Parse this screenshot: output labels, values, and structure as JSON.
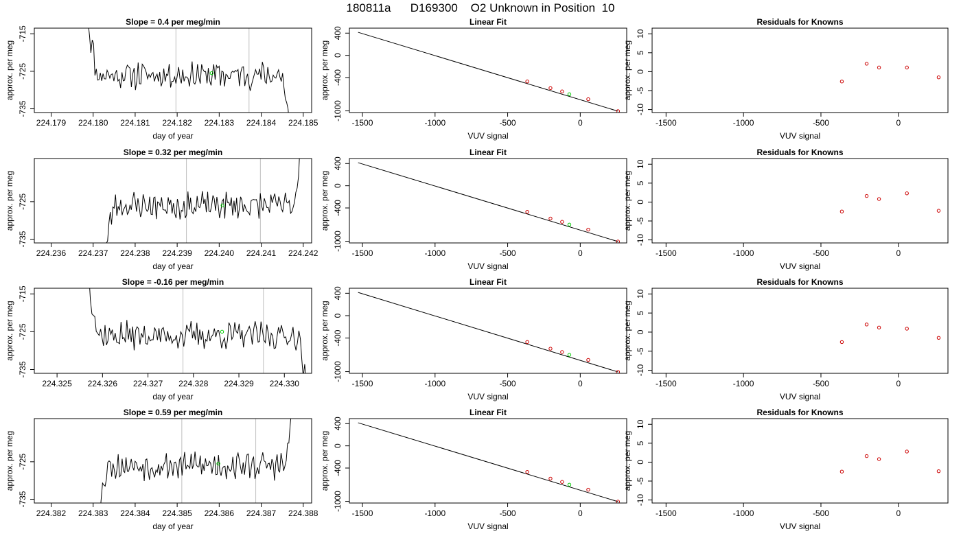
{
  "title": "180811a      D169300    O2 Unknown in Position  10",
  "colors": {
    "line": "#000000",
    "known_point": "#cc0000",
    "unknown_point": "#00cc00",
    "vline": "#bebebe",
    "frame": "#000000"
  },
  "chart_data": [
    {
      "type": "line",
      "panel": "timeseries",
      "row": 0,
      "title": "Slope =  0.4  per meg/min",
      "xlabel": "day of year",
      "ylabel": "approx. per meg",
      "xlim": [
        224.1786,
        224.1852
      ],
      "ylim": [
        -736,
        -713.5
      ],
      "xticks": [
        "224.179",
        "224.180",
        "224.181",
        "224.182",
        "224.183",
        "224.184",
        "224.185"
      ],
      "xtick_values": [
        224.179,
        224.18,
        224.181,
        224.182,
        224.183,
        224.184,
        224.185
      ],
      "yticks": [
        "-715",
        "-725",
        "-735"
      ],
      "ytick_values": [
        -715,
        -725,
        -735
      ],
      "vlines": [
        224.18197,
        224.18371
      ],
      "series_start": 224.17985,
      "series_end": 224.18467,
      "seed": 11,
      "unknown_point": {
        "x": 224.18282,
        "y": -725.5
      }
    },
    {
      "type": "scatter",
      "panel": "fit",
      "row": 0,
      "title": "Linear Fit",
      "xlabel": "VUV signal",
      "ylabel": "approx. per meg",
      "xlim": [
        -1590,
        320
      ],
      "ylim": [
        -1030,
        490
      ],
      "xticks": [
        "-1500",
        "-1000",
        "-500",
        "0"
      ],
      "xtick_values": [
        -1500,
        -1000,
        -500,
        0
      ],
      "yticks": [
        "400",
        "0",
        "-400",
        "-1000"
      ],
      "ytick_values": [
        400,
        0,
        -400,
        -1000
      ],
      "line": {
        "x": [
          -1530,
          260
        ],
        "y": [
          415,
          -1005
        ]
      },
      "known_points": {
        "x": [
          -365,
          -205,
          -125,
          55,
          260
        ],
        "y": [
          -470,
          -590,
          -650,
          -790,
          -1005
        ]
      },
      "unknown_points": {
        "x": [
          -75
        ],
        "y": [
          -700
        ]
      }
    },
    {
      "type": "scatter",
      "panel": "residuals",
      "row": 0,
      "title": "Residuals for Knowns",
      "xlabel": "VUV signal",
      "ylabel": "approx. per meg",
      "xlim": [
        -1590,
        320
      ],
      "ylim": [
        -10.8,
        11.5
      ],
      "xticks": [
        "-1500",
        "-1000",
        "-500",
        "0"
      ],
      "xtick_values": [
        -1500,
        -1000,
        -500,
        0
      ],
      "yticks": [
        "10",
        "5",
        "0",
        "-5",
        "-10"
      ],
      "ytick_values": [
        10,
        5,
        0,
        -5,
        -10
      ],
      "known_points": {
        "x": [
          -365,
          -205,
          -125,
          55,
          260
        ],
        "y": [
          -2.6,
          2.1,
          1.1,
          1.1,
          -1.5
        ]
      }
    },
    {
      "type": "line",
      "panel": "timeseries",
      "row": 1,
      "title": "Slope =  0.32  per meg/min",
      "xlabel": "day of year",
      "ylabel": "approx. per meg",
      "xlim": [
        224.2356,
        224.2422
      ],
      "ylim": [
        -736,
        -713.5
      ],
      "xticks": [
        "224.236",
        "224.237",
        "224.238",
        "224.239",
        "224.240",
        "224.241",
        "224.242"
      ],
      "xtick_values": [
        224.236,
        224.237,
        224.238,
        224.239,
        224.24,
        224.241,
        224.242
      ],
      "yticks": [
        "-725",
        "-735"
      ],
      "ytick_values": [
        -725,
        -735
      ],
      "vlines": [
        224.23922,
        224.24098
      ],
      "series_start": 224.23725,
      "series_end": 224.24195,
      "seed": 23,
      "unknown_point": {
        "x": 224.24008,
        "y": -726.0
      }
    },
    {
      "type": "scatter",
      "panel": "fit",
      "row": 1,
      "title": "Linear Fit",
      "xlabel": "VUV signal",
      "ylabel": "approx. per meg",
      "xlim": [
        -1590,
        320
      ],
      "ylim": [
        -1030,
        490
      ],
      "xticks": [
        "-1500",
        "-1000",
        "-500",
        "0"
      ],
      "xtick_values": [
        -1500,
        -1000,
        -500,
        0
      ],
      "yticks": [
        "400",
        "0",
        "-400",
        "-1000"
      ],
      "ytick_values": [
        400,
        0,
        -400,
        -1000
      ],
      "line": {
        "x": [
          -1530,
          260
        ],
        "y": [
          415,
          -1005
        ]
      },
      "known_points": {
        "x": [
          -365,
          -205,
          -125,
          55,
          260
        ],
        "y": [
          -470,
          -590,
          -650,
          -790,
          -1005
        ]
      },
      "unknown_points": {
        "x": [
          -75
        ],
        "y": [
          -700
        ]
      }
    },
    {
      "type": "scatter",
      "panel": "residuals",
      "row": 1,
      "title": "Residuals for Knowns",
      "xlabel": "VUV signal",
      "ylabel": "approx. per meg",
      "xlim": [
        -1590,
        320
      ],
      "ylim": [
        -10.8,
        11.5
      ],
      "xticks": [
        "-1500",
        "-1000",
        "-500",
        "0"
      ],
      "xtick_values": [
        -1500,
        -1000,
        -500,
        0
      ],
      "yticks": [
        "10",
        "5",
        "0",
        "-5",
        "-10"
      ],
      "ytick_values": [
        10,
        5,
        0,
        -5,
        -10
      ],
      "known_points": {
        "x": [
          -365,
          -205,
          -125,
          55,
          260
        ],
        "y": [
          -2.5,
          1.6,
          0.8,
          2.3,
          -2.3
        ]
      }
    },
    {
      "type": "line",
      "panel": "timeseries",
      "row": 2,
      "title": "Slope =  -0.16  per meg/min",
      "xlabel": "day of year",
      "ylabel": "approx. per meg",
      "xlim": [
        224.3245,
        224.3306
      ],
      "ylim": [
        -736,
        -713.5
      ],
      "xticks": [
        "224.325",
        "224.326",
        "224.327",
        "224.328",
        "224.329",
        "224.330"
      ],
      "xtick_values": [
        224.325,
        224.326,
        224.327,
        224.328,
        224.329,
        224.33
      ],
      "yticks": [
        "-715",
        "-725",
        "-735"
      ],
      "ytick_values": [
        -715,
        -725,
        -735
      ],
      "vlines": [
        224.32777,
        224.32954
      ],
      "series_start": 224.32567,
      "series_end": 224.33048,
      "seed": 37,
      "unknown_point": {
        "x": 224.32863,
        "y": -725.0
      }
    },
    {
      "type": "scatter",
      "panel": "fit",
      "row": 2,
      "title": "Linear Fit",
      "xlabel": "VUV signal",
      "ylabel": "approx. per meg",
      "xlim": [
        -1590,
        320
      ],
      "ylim": [
        -1030,
        490
      ],
      "xticks": [
        "-1500",
        "-1000",
        "-500",
        "0"
      ],
      "xtick_values": [
        -1500,
        -1000,
        -500,
        0
      ],
      "yticks": [
        "400",
        "0",
        "-400",
        "-1000"
      ],
      "ytick_values": [
        400,
        0,
        -400,
        -1000
      ],
      "line": {
        "x": [
          -1530,
          260
        ],
        "y": [
          415,
          -1005
        ]
      },
      "known_points": {
        "x": [
          -365,
          -205,
          -125,
          55,
          260
        ],
        "y": [
          -470,
          -590,
          -650,
          -790,
          -1005
        ]
      },
      "unknown_points": {
        "x": [
          -75
        ],
        "y": [
          -700
        ]
      }
    },
    {
      "type": "scatter",
      "panel": "residuals",
      "row": 2,
      "title": "Residuals for Knowns",
      "xlabel": "VUV signal",
      "ylabel": "approx. per meg",
      "xlim": [
        -1590,
        320
      ],
      "ylim": [
        -10.8,
        11.5
      ],
      "xticks": [
        "-1500",
        "-1000",
        "-500",
        "0"
      ],
      "xtick_values": [
        -1500,
        -1000,
        -500,
        0
      ],
      "yticks": [
        "10",
        "5",
        "0",
        "-5",
        "-10"
      ],
      "ytick_values": [
        10,
        5,
        0,
        -5,
        -10
      ],
      "known_points": {
        "x": [
          -365,
          -205,
          -125,
          55,
          260
        ],
        "y": [
          -2.6,
          2.0,
          1.2,
          0.9,
          -1.5
        ]
      }
    },
    {
      "type": "line",
      "panel": "timeseries",
      "row": 3,
      "title": "Slope =  0.59  per meg/min",
      "xlabel": "day of year",
      "ylabel": "approx. per meg",
      "xlim": [
        224.3816,
        224.3882
      ],
      "ylim": [
        -736,
        -713.5
      ],
      "xticks": [
        "224.382",
        "224.383",
        "224.384",
        "224.385",
        "224.386",
        "224.387",
        "224.388"
      ],
      "xtick_values": [
        224.382,
        224.383,
        224.384,
        224.385,
        224.386,
        224.387,
        224.388
      ],
      "yticks": [
        "-725",
        "-735"
      ],
      "ytick_values": [
        -725,
        -735
      ],
      "vlines": [
        224.38511,
        224.38687
      ],
      "series_start": 224.3831,
      "series_end": 224.38775,
      "seed": 53,
      "unknown_point": {
        "x": 224.38598,
        "y": -725.5
      }
    },
    {
      "type": "scatter",
      "panel": "fit",
      "row": 3,
      "title": "Linear Fit",
      "xlabel": "VUV signal",
      "ylabel": "approx. per meg",
      "xlim": [
        -1590,
        320
      ],
      "ylim": [
        -1030,
        490
      ],
      "xticks": [
        "-1500",
        "-1000",
        "-500",
        "0"
      ],
      "xtick_values": [
        -1500,
        -1000,
        -500,
        0
      ],
      "yticks": [
        "400",
        "0",
        "-400",
        "-1000"
      ],
      "ytick_values": [
        400,
        0,
        -400,
        -1000
      ],
      "line": {
        "x": [
          -1530,
          260
        ],
        "y": [
          415,
          -1005
        ]
      },
      "known_points": {
        "x": [
          -365,
          -205,
          -125,
          55,
          260
        ],
        "y": [
          -470,
          -590,
          -650,
          -790,
          -1005
        ]
      },
      "unknown_points": {
        "x": [
          -75
        ],
        "y": [
          -700
        ]
      }
    },
    {
      "type": "scatter",
      "panel": "residuals",
      "row": 3,
      "title": "Residuals for Knowns",
      "xlabel": "VUV signal",
      "ylabel": "approx. per meg",
      "xlim": [
        -1590,
        320
      ],
      "ylim": [
        -10.8,
        11.5
      ],
      "xticks": [
        "-1500",
        "-1000",
        "-500",
        "0"
      ],
      "xtick_values": [
        -1500,
        -1000,
        -500,
        0
      ],
      "yticks": [
        "10",
        "5",
        "0",
        "-5",
        "-10"
      ],
      "ytick_values": [
        10,
        5,
        0,
        -5,
        -10
      ],
      "known_points": {
        "x": [
          -365,
          -205,
          -125,
          55,
          260
        ],
        "y": [
          -2.5,
          1.6,
          0.8,
          2.8,
          -2.4
        ]
      }
    }
  ]
}
